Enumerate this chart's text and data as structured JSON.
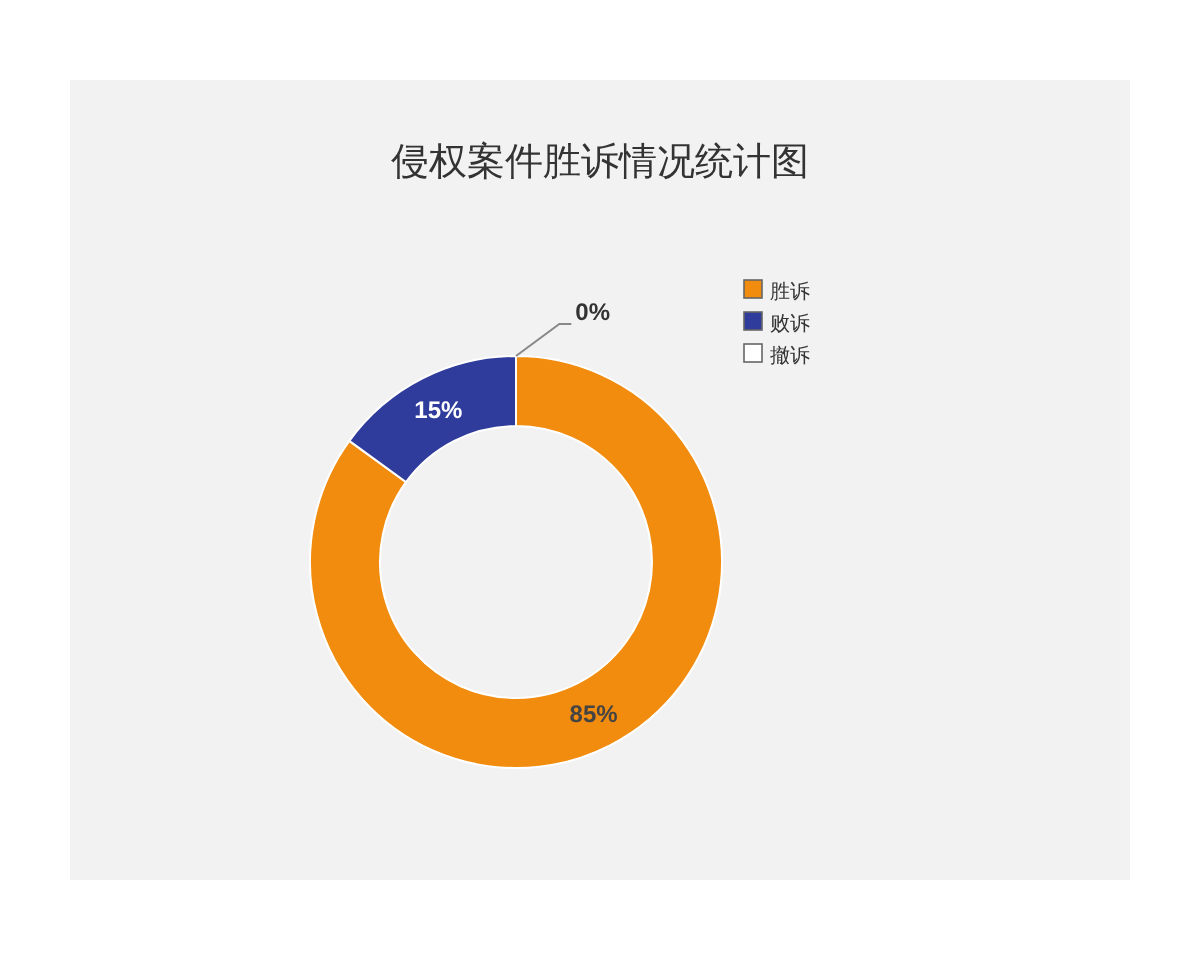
{
  "chart_data": {
    "type": "donut",
    "title": "侵权案件胜诉情况统计图",
    "categories": [
      "胜诉",
      "败诉",
      "撤诉"
    ],
    "values": [
      85,
      15,
      0
    ],
    "colors": [
      "#f28c0f",
      "#2f3c9c",
      "#ffffff"
    ],
    "value_labels": [
      "85%",
      "15%",
      "0%"
    ],
    "legend": "top right"
  }
}
